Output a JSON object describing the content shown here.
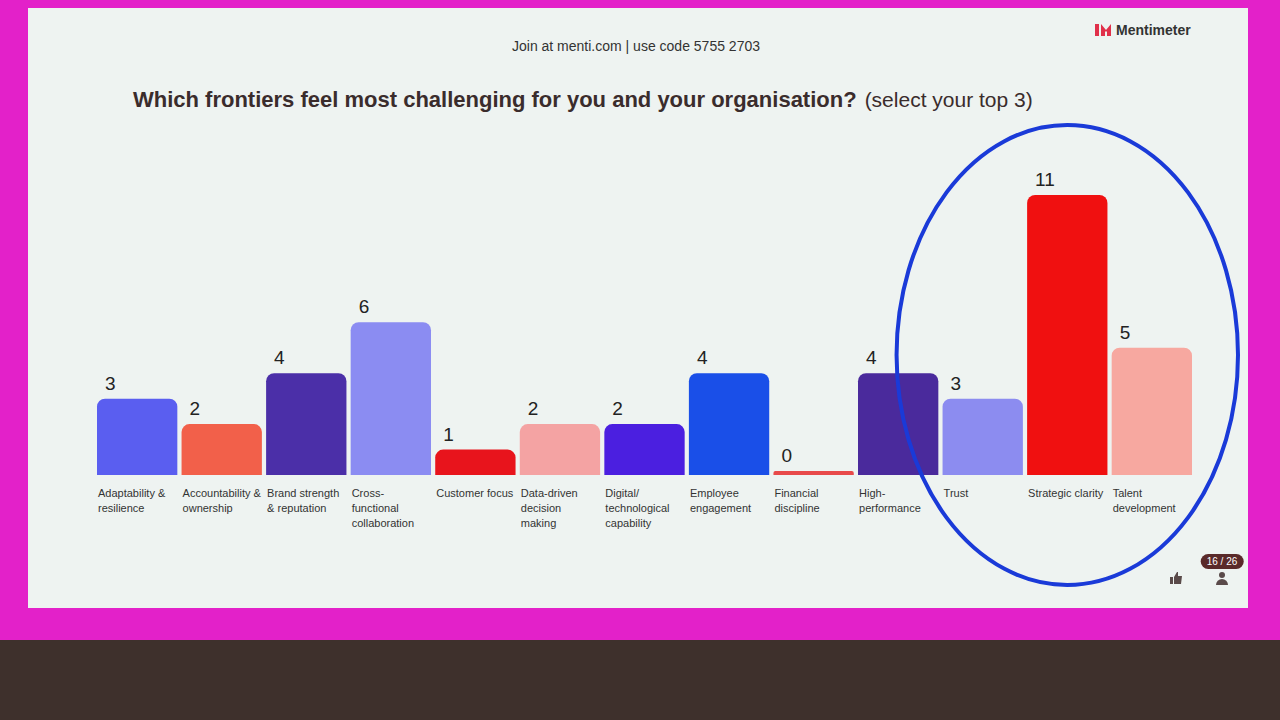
{
  "header": {
    "join": "Join at menti.com | use code 5755 2703",
    "brand": "Mentimeter"
  },
  "footer": {
    "counter": "16 / 26"
  },
  "chart_data": {
    "type": "bar",
    "title": "Which frontiers feel most challenging for you and your organisation?",
    "subtitle": "(select your top 3)",
    "categories": [
      "Adaptability & resilience",
      "Accountability & ownership",
      "Brand strength & reputation",
      "Cross-functional collaboration",
      "Customer focus",
      "Data-driven decision making",
      "Digital/technological capability",
      "Employee engagement",
      "Financial discipline",
      "High-performance",
      "Trust",
      "Strategic clarity",
      "Talent development"
    ],
    "values": [
      3,
      2,
      4,
      6,
      1,
      2,
      2,
      4,
      0,
      4,
      3,
      11,
      5
    ],
    "colors": [
      "#5a5ef0",
      "#f2604a",
      "#4b2fa8",
      "#8b8cf2",
      "#e8141c",
      "#f4a3a3",
      "#4b1fe0",
      "#1a4fe8",
      "#e84a4a",
      "#4a2a9c",
      "#8c8cf0",
      "#f01010",
      "#f7a8a0"
    ],
    "data_labels": true,
    "tick_labels": "x",
    "grid": false
  }
}
